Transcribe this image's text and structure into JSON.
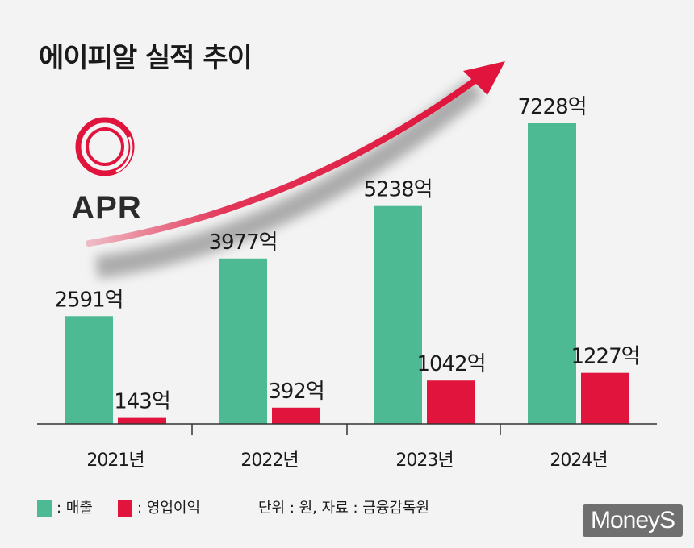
{
  "title": "에이피알 실적 추이",
  "logo_text": "APR",
  "legend": {
    "revenue": ": 매출",
    "operating_profit": ": 영업이익"
  },
  "note": "단위 : 원, 자료 : 금융감독원",
  "badge": "MoneyS",
  "colors": {
    "revenue": "#4dba93",
    "operating_profit": "#e0143c",
    "arrow": "#e0143c"
  },
  "chart_data": {
    "type": "bar",
    "title": "에이피알 실적 추이",
    "categories": [
      "2021년",
      "2022년",
      "2023년",
      "2024년"
    ],
    "series": [
      {
        "name": "매출",
        "values": [
          2591,
          3977,
          5238,
          7228
        ],
        "labels": [
          "2591억",
          "3977억",
          "5238억",
          "7228억"
        ]
      },
      {
        "name": "영업이익",
        "values": [
          143,
          392,
          1042,
          1227
        ],
        "labels": [
          "143억",
          "392억",
          "1042억",
          "1227억"
        ]
      }
    ],
    "ylim": [
      0,
      7228
    ],
    "grid": false
  }
}
